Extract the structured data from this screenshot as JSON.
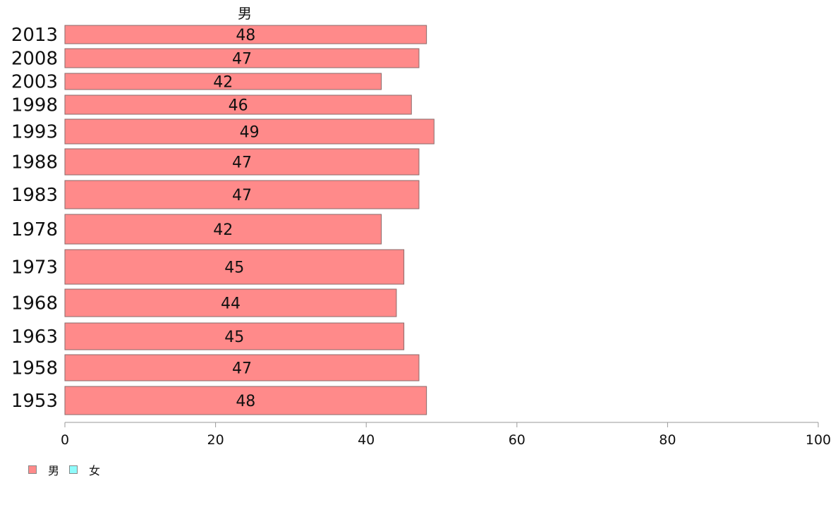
{
  "chart_data": {
    "type": "bar",
    "orientation": "horizontal",
    "title": "男",
    "categories": [
      "2013",
      "2008",
      "2003",
      "1998",
      "1993",
      "1988",
      "1983",
      "1978",
      "1973",
      "1968",
      "1963",
      "1958",
      "1953"
    ],
    "series": [
      {
        "name": "男",
        "color": "#ff8a8a",
        "values": [
          48,
          47,
          42,
          46,
          49,
          47,
          47,
          42,
          45,
          44,
          45,
          47,
          48
        ],
        "labels": [
          "48",
          "47",
          "42",
          "46",
          "49",
          "47",
          "47",
          "42",
          "45",
          "44",
          "45",
          "47",
          "48"
        ]
      }
    ],
    "xlim": [
      0,
      100
    ],
    "xticks": [
      0,
      20,
      40,
      60,
      80,
      100
    ],
    "legend_position": "bottom-left",
    "grid": false
  },
  "legend": {
    "items": [
      {
        "label": "男",
        "color": "#ff8a8a"
      },
      {
        "label": "女",
        "color": "#8ffbfb"
      }
    ]
  }
}
